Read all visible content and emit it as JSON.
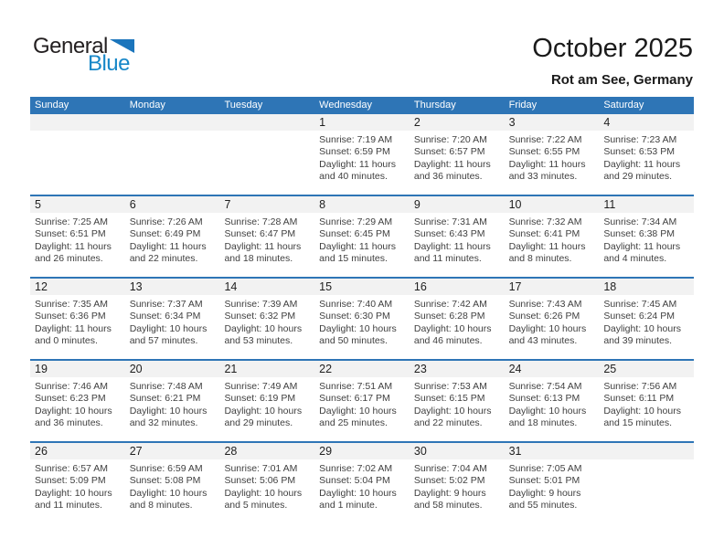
{
  "logo": {
    "general": "General",
    "blue": "Blue",
    "triangle_icon": "blue-right-triangle"
  },
  "header": {
    "title": "October 2025",
    "subtitle": "Rot am See, Germany"
  },
  "colors": {
    "header_blue": "#2e75b6",
    "row_separator_blue": "#2e75b6",
    "day_strip_gray": "#f2f2f2",
    "cell_text": "#3f3f3f",
    "logo_black": "#231f20",
    "logo_blue": "#1787c8",
    "logo_triangle_blue": "#1b75bc"
  },
  "calendar": {
    "weekdays": [
      "Sunday",
      "Monday",
      "Tuesday",
      "Wednesday",
      "Thursday",
      "Friday",
      "Saturday"
    ],
    "weeks": [
      [
        null,
        null,
        null,
        {
          "day": "1",
          "sunrise": "Sunrise: 7:19 AM",
          "sunset": "Sunset: 6:59 PM",
          "daylight": "Daylight: 11 hours and 40 minutes."
        },
        {
          "day": "2",
          "sunrise": "Sunrise: 7:20 AM",
          "sunset": "Sunset: 6:57 PM",
          "daylight": "Daylight: 11 hours and 36 minutes."
        },
        {
          "day": "3",
          "sunrise": "Sunrise: 7:22 AM",
          "sunset": "Sunset: 6:55 PM",
          "daylight": "Daylight: 11 hours and 33 minutes."
        },
        {
          "day": "4",
          "sunrise": "Sunrise: 7:23 AM",
          "sunset": "Sunset: 6:53 PM",
          "daylight": "Daylight: 11 hours and 29 minutes."
        }
      ],
      [
        {
          "day": "5",
          "sunrise": "Sunrise: 7:25 AM",
          "sunset": "Sunset: 6:51 PM",
          "daylight": "Daylight: 11 hours and 26 minutes."
        },
        {
          "day": "6",
          "sunrise": "Sunrise: 7:26 AM",
          "sunset": "Sunset: 6:49 PM",
          "daylight": "Daylight: 11 hours and 22 minutes."
        },
        {
          "day": "7",
          "sunrise": "Sunrise: 7:28 AM",
          "sunset": "Sunset: 6:47 PM",
          "daylight": "Daylight: 11 hours and 18 minutes."
        },
        {
          "day": "8",
          "sunrise": "Sunrise: 7:29 AM",
          "sunset": "Sunset: 6:45 PM",
          "daylight": "Daylight: 11 hours and 15 minutes."
        },
        {
          "day": "9",
          "sunrise": "Sunrise: 7:31 AM",
          "sunset": "Sunset: 6:43 PM",
          "daylight": "Daylight: 11 hours and 11 minutes."
        },
        {
          "day": "10",
          "sunrise": "Sunrise: 7:32 AM",
          "sunset": "Sunset: 6:41 PM",
          "daylight": "Daylight: 11 hours and 8 minutes."
        },
        {
          "day": "11",
          "sunrise": "Sunrise: 7:34 AM",
          "sunset": "Sunset: 6:38 PM",
          "daylight": "Daylight: 11 hours and 4 minutes."
        }
      ],
      [
        {
          "day": "12",
          "sunrise": "Sunrise: 7:35 AM",
          "sunset": "Sunset: 6:36 PM",
          "daylight": "Daylight: 11 hours and 0 minutes."
        },
        {
          "day": "13",
          "sunrise": "Sunrise: 7:37 AM",
          "sunset": "Sunset: 6:34 PM",
          "daylight": "Daylight: 10 hours and 57 minutes."
        },
        {
          "day": "14",
          "sunrise": "Sunrise: 7:39 AM",
          "sunset": "Sunset: 6:32 PM",
          "daylight": "Daylight: 10 hours and 53 minutes."
        },
        {
          "day": "15",
          "sunrise": "Sunrise: 7:40 AM",
          "sunset": "Sunset: 6:30 PM",
          "daylight": "Daylight: 10 hours and 50 minutes."
        },
        {
          "day": "16",
          "sunrise": "Sunrise: 7:42 AM",
          "sunset": "Sunset: 6:28 PM",
          "daylight": "Daylight: 10 hours and 46 minutes."
        },
        {
          "day": "17",
          "sunrise": "Sunrise: 7:43 AM",
          "sunset": "Sunset: 6:26 PM",
          "daylight": "Daylight: 10 hours and 43 minutes."
        },
        {
          "day": "18",
          "sunrise": "Sunrise: 7:45 AM",
          "sunset": "Sunset: 6:24 PM",
          "daylight": "Daylight: 10 hours and 39 minutes."
        }
      ],
      [
        {
          "day": "19",
          "sunrise": "Sunrise: 7:46 AM",
          "sunset": "Sunset: 6:23 PM",
          "daylight": "Daylight: 10 hours and 36 minutes."
        },
        {
          "day": "20",
          "sunrise": "Sunrise: 7:48 AM",
          "sunset": "Sunset: 6:21 PM",
          "daylight": "Daylight: 10 hours and 32 minutes."
        },
        {
          "day": "21",
          "sunrise": "Sunrise: 7:49 AM",
          "sunset": "Sunset: 6:19 PM",
          "daylight": "Daylight: 10 hours and 29 minutes."
        },
        {
          "day": "22",
          "sunrise": "Sunrise: 7:51 AM",
          "sunset": "Sunset: 6:17 PM",
          "daylight": "Daylight: 10 hours and 25 minutes."
        },
        {
          "day": "23",
          "sunrise": "Sunrise: 7:53 AM",
          "sunset": "Sunset: 6:15 PM",
          "daylight": "Daylight: 10 hours and 22 minutes."
        },
        {
          "day": "24",
          "sunrise": "Sunrise: 7:54 AM",
          "sunset": "Sunset: 6:13 PM",
          "daylight": "Daylight: 10 hours and 18 minutes."
        },
        {
          "day": "25",
          "sunrise": "Sunrise: 7:56 AM",
          "sunset": "Sunset: 6:11 PM",
          "daylight": "Daylight: 10 hours and 15 minutes."
        }
      ],
      [
        {
          "day": "26",
          "sunrise": "Sunrise: 6:57 AM",
          "sunset": "Sunset: 5:09 PM",
          "daylight": "Daylight: 10 hours and 11 minutes."
        },
        {
          "day": "27",
          "sunrise": "Sunrise: 6:59 AM",
          "sunset": "Sunset: 5:08 PM",
          "daylight": "Daylight: 10 hours and 8 minutes."
        },
        {
          "day": "28",
          "sunrise": "Sunrise: 7:01 AM",
          "sunset": "Sunset: 5:06 PM",
          "daylight": "Daylight: 10 hours and 5 minutes."
        },
        {
          "day": "29",
          "sunrise": "Sunrise: 7:02 AM",
          "sunset": "Sunset: 5:04 PM",
          "daylight": "Daylight: 10 hours and 1 minute."
        },
        {
          "day": "30",
          "sunrise": "Sunrise: 7:04 AM",
          "sunset": "Sunset: 5:02 PM",
          "daylight": "Daylight: 9 hours and 58 minutes."
        },
        {
          "day": "31",
          "sunrise": "Sunrise: 7:05 AM",
          "sunset": "Sunset: 5:01 PM",
          "daylight": "Daylight: 9 hours and 55 minutes."
        },
        null
      ]
    ]
  }
}
